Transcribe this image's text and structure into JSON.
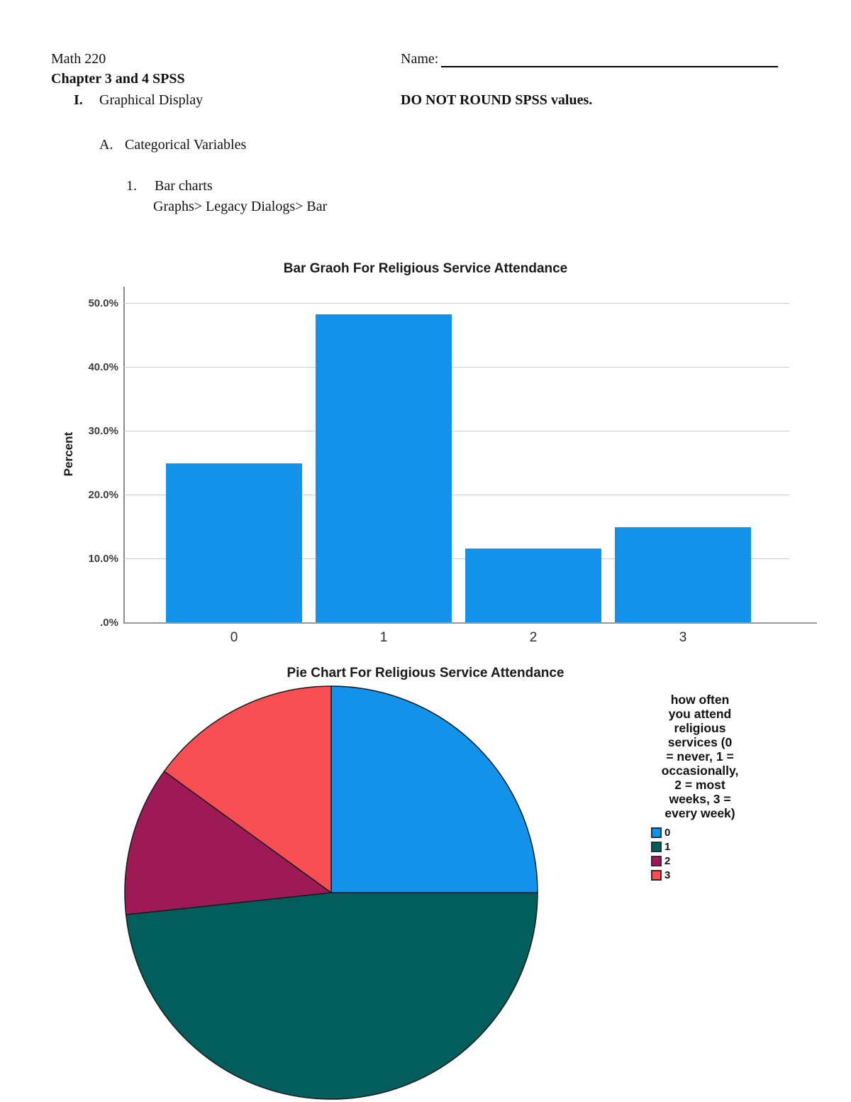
{
  "header": {
    "course": "Math 220",
    "title": "Chapter 3 and 4 SPSS",
    "name_label": "Name:",
    "section_numeral": "I.",
    "section_title": "Graphical Display",
    "note": "DO NOT ROUND SPSS values.",
    "subsection_letter": "A.",
    "subsection_title": "Categorical Variables",
    "item_number": "1.",
    "item_title": "Bar charts",
    "item_path": "Graphs> Legacy Dialogs> Bar"
  },
  "chart_data": [
    {
      "type": "bar",
      "title": "Bar Graoh For Religious Service Attendance",
      "categories": [
        "0",
        "1",
        "2",
        "3"
      ],
      "values": [
        25.0,
        48.3,
        11.7,
        15.0
      ],
      "xlabel": "",
      "ylabel": "Percent",
      "ylim": [
        0,
        52.5
      ],
      "grid": true,
      "bar_color": "#1292E8",
      "yticks": [
        {
          "value": 50,
          "label": "50.0%"
        },
        {
          "value": 40,
          "label": "40.0%"
        },
        {
          "value": 30,
          "label": "30.0%"
        },
        {
          "value": 20,
          "label": "20.0%"
        },
        {
          "value": 10,
          "label": "10.0%"
        },
        {
          "value": 0,
          "label": ".0%"
        }
      ]
    },
    {
      "type": "pie",
      "title": "Pie Chart For Religious Service Attendance",
      "start_angle_deg": 0,
      "direction": "clockwise",
      "slices": [
        {
          "label": "0",
          "value": 25.0,
          "color": "#1292E8"
        },
        {
          "label": "1",
          "value": 48.3,
          "color": "#015E5C"
        },
        {
          "label": "2",
          "value": 11.7,
          "color": "#9E1A56"
        },
        {
          "label": "3",
          "value": 15.0,
          "color": "#FA4E55"
        }
      ],
      "legend_position": "right",
      "legend_title_lines": [
        "how often",
        "you attend",
        "religious",
        "services (0",
        "= never, 1 =",
        "occasionally,",
        "2 = most",
        "weeks, 3 =",
        "every week)"
      ]
    }
  ]
}
